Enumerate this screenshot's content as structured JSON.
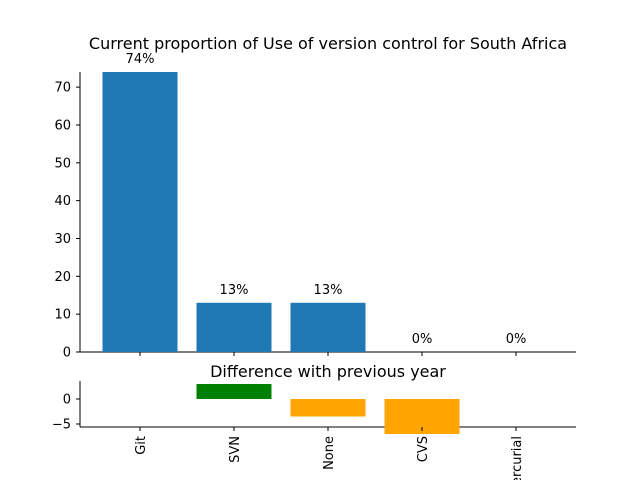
{
  "chart_data": [
    {
      "type": "bar",
      "title": "Current proportion of Use of version control for South Africa",
      "categories": [
        "Git",
        "SVN",
        "None",
        "CVS",
        "Mercurial"
      ],
      "values": [
        74,
        13,
        13,
        0,
        0
      ],
      "data_labels": [
        "74%",
        "13%",
        "13%",
        "0%",
        "0%"
      ],
      "ylim": [
        0,
        74
      ],
      "yticks": [
        0,
        10,
        20,
        30,
        40,
        50,
        60,
        70
      ],
      "bar_color": "#1f77b4",
      "grid": false
    },
    {
      "type": "bar",
      "title": "Difference with previous year",
      "categories": [
        "Git",
        "SVN",
        "None",
        "CVS",
        "Mercurial"
      ],
      "values": [
        0,
        3,
        -3.5,
        -7,
        0
      ],
      "ylim": [
        -7,
        4
      ],
      "yticks": [
        -5,
        0
      ],
      "positive_color": "#008000",
      "negative_color": "#ffa500",
      "grid": false
    }
  ]
}
